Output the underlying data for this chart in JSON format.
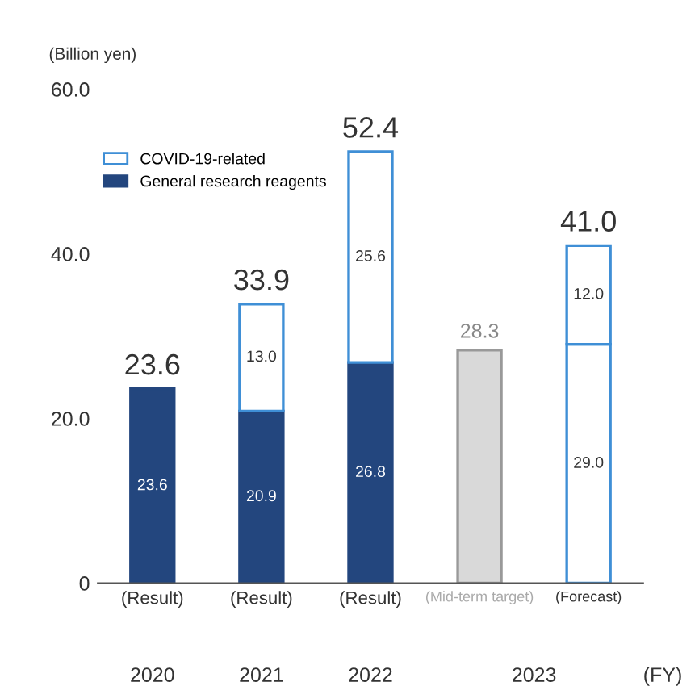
{
  "chart_data": {
    "type": "bar",
    "stacked": true,
    "ylabel": "(Billion yen)",
    "categories": [
      "(Result)",
      "(Result)",
      "(Result)",
      "(Mid-term target)",
      "(Forecast)"
    ],
    "series": [
      {
        "name": "General research reagents",
        "color": "#23467e",
        "colors": [
          "#23467e",
          "#23467e",
          "#23467e",
          "#23467e",
          "#ffffff"
        ],
        "values": [
          23.6,
          20.9,
          26.8,
          null,
          29.0
        ],
        "value_labels": [
          "23.6",
          "20.9",
          "26.8",
          null,
          "29.0"
        ]
      },
      {
        "name": "COVID-19-related",
        "color": "#ffffff",
        "values": [
          null,
          13.0,
          25.6,
          null,
          12.0
        ],
        "value_labels": [
          null,
          "13.0",
          "25.6",
          null,
          "12.0"
        ]
      },
      {
        "color": "#d9d9d9",
        "values": [
          null,
          null,
          null,
          28.3,
          null
        ]
      }
    ],
    "totals": [
      "23.6",
      "33.9",
      "52.4",
      "28.3",
      "41.0"
    ],
    "ylim": [
      0,
      60
    ],
    "yticks": [
      0,
      {
        "value": 20,
        "label": "20.0"
      },
      {
        "value": 40,
        "label": "40.0"
      },
      {
        "value": 60,
        "label": "60.0"
      }
    ],
    "grid": false,
    "legend": "top left",
    "annotations": [
      "2020",
      "2021",
      "2022",
      "2023",
      "(FY)"
    ]
  }
}
